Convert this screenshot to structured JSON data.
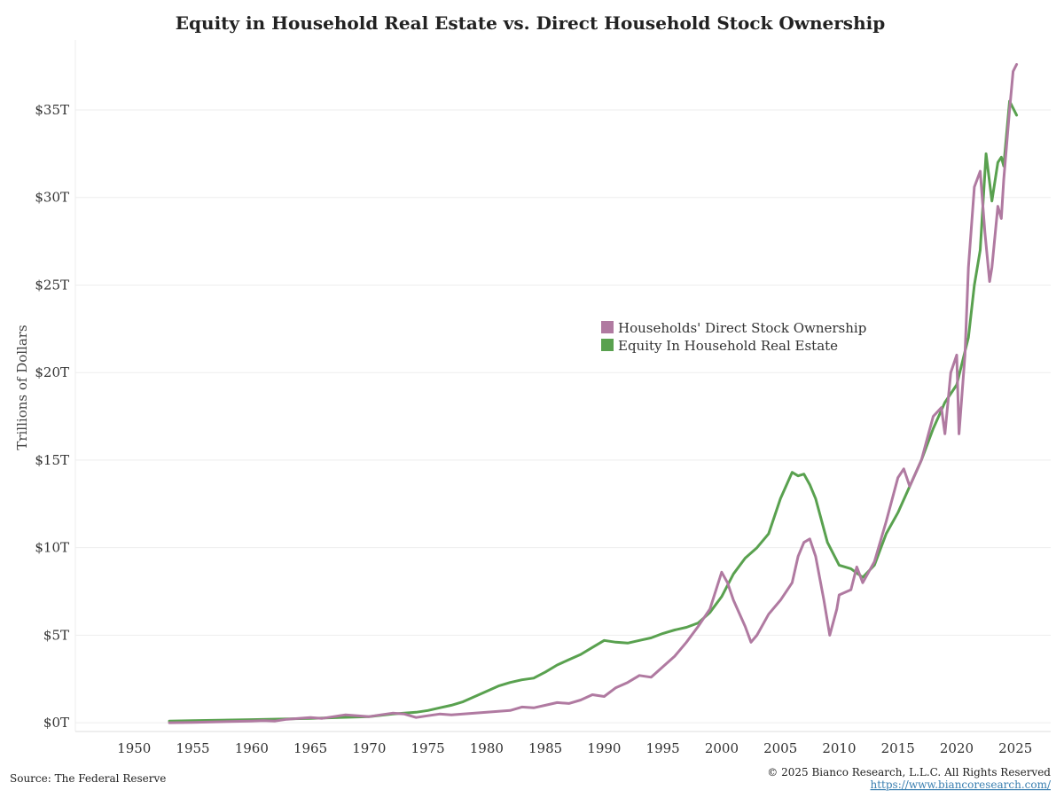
{
  "chart_data": {
    "type": "line",
    "title": "Equity in Household Real Estate vs. Direct Household Stock Ownership",
    "xlabel": "",
    "ylabel": "Trillions of Dollars",
    "xlim": [
      1945,
      2028
    ],
    "ylim": [
      -0.5,
      39
    ],
    "x_ticks": [
      1950,
      1955,
      1960,
      1965,
      1970,
      1975,
      1980,
      1985,
      1990,
      1995,
      2000,
      2005,
      2010,
      2015,
      2020,
      2025
    ],
    "y_ticks": [
      {
        "value": 0,
        "label": "$0T"
      },
      {
        "value": 5,
        "label": "$5T"
      },
      {
        "value": 10,
        "label": "$10T"
      },
      {
        "value": 15,
        "label": "$15T"
      },
      {
        "value": 20,
        "label": "$20T"
      },
      {
        "value": 25,
        "label": "$25T"
      },
      {
        "value": 30,
        "label": "$30T"
      },
      {
        "value": 35,
        "label": "$35T"
      }
    ],
    "legend_position": "center-right",
    "series": [
      {
        "name": "Households' Direct Stock Ownership",
        "color": "#b07aa1",
        "points": [
          [
            1953.0,
            0.0
          ],
          [
            1955,
            0.02
          ],
          [
            1957,
            0.05
          ],
          [
            1959,
            0.08
          ],
          [
            1960,
            0.1
          ],
          [
            1961,
            0.12
          ],
          [
            1962,
            0.1
          ],
          [
            1963,
            0.2
          ],
          [
            1964,
            0.25
          ],
          [
            1965,
            0.3
          ],
          [
            1966,
            0.25
          ],
          [
            1967,
            0.35
          ],
          [
            1968,
            0.45
          ],
          [
            1969,
            0.4
          ],
          [
            1970,
            0.35
          ],
          [
            1971,
            0.45
          ],
          [
            1972,
            0.55
          ],
          [
            1973,
            0.5
          ],
          [
            1974,
            0.3
          ],
          [
            1975,
            0.4
          ],
          [
            1976,
            0.5
          ],
          [
            1977,
            0.45
          ],
          [
            1978,
            0.5
          ],
          [
            1979,
            0.55
          ],
          [
            1980,
            0.6
          ],
          [
            1981,
            0.65
          ],
          [
            1982,
            0.7
          ],
          [
            1983,
            0.9
          ],
          [
            1984,
            0.85
          ],
          [
            1985,
            1.0
          ],
          [
            1986,
            1.15
          ],
          [
            1987,
            1.1
          ],
          [
            1988,
            1.3
          ],
          [
            1989,
            1.6
          ],
          [
            1990,
            1.5
          ],
          [
            1991,
            2.0
          ],
          [
            1992,
            2.3
          ],
          [
            1993,
            2.7
          ],
          [
            1994,
            2.6
          ],
          [
            1995,
            3.2
          ],
          [
            1996,
            3.8
          ],
          [
            1997,
            4.6
          ],
          [
            1998,
            5.5
          ],
          [
            1999,
            6.5
          ],
          [
            2000,
            8.6
          ],
          [
            2000.5,
            8.0
          ],
          [
            2001,
            7.0
          ],
          [
            2002,
            5.5
          ],
          [
            2002.5,
            4.6
          ],
          [
            2003,
            5.0
          ],
          [
            2004,
            6.2
          ],
          [
            2005,
            7.0
          ],
          [
            2006,
            8.0
          ],
          [
            2006.5,
            9.5
          ],
          [
            2007,
            10.3
          ],
          [
            2007.5,
            10.5
          ],
          [
            2008,
            9.5
          ],
          [
            2008.7,
            7.0
          ],
          [
            2009.2,
            5.0
          ],
          [
            2009.8,
            6.5
          ],
          [
            2010,
            7.3
          ],
          [
            2011,
            7.6
          ],
          [
            2011.5,
            8.9
          ],
          [
            2012,
            8.0
          ],
          [
            2013,
            9.2
          ],
          [
            2014,
            11.5
          ],
          [
            2015,
            14.0
          ],
          [
            2015.5,
            14.5
          ],
          [
            2016,
            13.5
          ],
          [
            2017,
            15.0
          ],
          [
            2018,
            17.5
          ],
          [
            2018.7,
            18.0
          ],
          [
            2019,
            16.5
          ],
          [
            2019.5,
            20.0
          ],
          [
            2020,
            21.0
          ],
          [
            2020.2,
            16.5
          ],
          [
            2020.7,
            21.0
          ],
          [
            2021,
            26.0
          ],
          [
            2021.5,
            30.6
          ],
          [
            2022,
            31.5
          ],
          [
            2022.4,
            28.0
          ],
          [
            2022.8,
            25.2
          ],
          [
            2023,
            26.0
          ],
          [
            2023.5,
            29.5
          ],
          [
            2023.8,
            28.8
          ],
          [
            2024,
            31.0
          ],
          [
            2024.5,
            35.0
          ],
          [
            2024.8,
            37.2
          ],
          [
            2025.1,
            37.6
          ]
        ]
      },
      {
        "name": "Equity In Household Real Estate",
        "color": "#59a14f",
        "points": [
          [
            1953.0,
            0.1
          ],
          [
            1955,
            0.12
          ],
          [
            1960,
            0.18
          ],
          [
            1965,
            0.25
          ],
          [
            1970,
            0.35
          ],
          [
            1972,
            0.5
          ],
          [
            1974,
            0.6
          ],
          [
            1975,
            0.7
          ],
          [
            1976,
            0.85
          ],
          [
            1977,
            1.0
          ],
          [
            1978,
            1.2
          ],
          [
            1979,
            1.5
          ],
          [
            1980,
            1.8
          ],
          [
            1981,
            2.1
          ],
          [
            1982,
            2.3
          ],
          [
            1983,
            2.45
          ],
          [
            1984,
            2.55
          ],
          [
            1985,
            2.9
          ],
          [
            1986,
            3.3
          ],
          [
            1987,
            3.6
          ],
          [
            1988,
            3.9
          ],
          [
            1989,
            4.3
          ],
          [
            1990,
            4.7
          ],
          [
            1991,
            4.6
          ],
          [
            1992,
            4.55
          ],
          [
            1993,
            4.7
          ],
          [
            1994,
            4.85
          ],
          [
            1995,
            5.1
          ],
          [
            1996,
            5.3
          ],
          [
            1997,
            5.45
          ],
          [
            1998,
            5.7
          ],
          [
            1999,
            6.3
          ],
          [
            2000,
            7.2
          ],
          [
            2001,
            8.5
          ],
          [
            2002,
            9.4
          ],
          [
            2003,
            10.0
          ],
          [
            2004,
            10.8
          ],
          [
            2005,
            12.8
          ],
          [
            2006,
            14.3
          ],
          [
            2006.5,
            14.1
          ],
          [
            2007,
            14.2
          ],
          [
            2007.5,
            13.6
          ],
          [
            2008,
            12.8
          ],
          [
            2009,
            10.3
          ],
          [
            2010,
            9.0
          ],
          [
            2011,
            8.8
          ],
          [
            2012,
            8.3
          ],
          [
            2013,
            9.0
          ],
          [
            2014,
            10.8
          ],
          [
            2015,
            12.0
          ],
          [
            2016,
            13.5
          ],
          [
            2017,
            15.0
          ],
          [
            2018,
            16.8
          ],
          [
            2019,
            18.3
          ],
          [
            2020,
            19.3
          ],
          [
            2021,
            22.0
          ],
          [
            2021.5,
            25.0
          ],
          [
            2022,
            27.0
          ],
          [
            2022.5,
            32.5
          ],
          [
            2023,
            29.8
          ],
          [
            2023.5,
            32.0
          ],
          [
            2023.8,
            32.3
          ],
          [
            2024,
            31.8
          ],
          [
            2024.5,
            35.5
          ],
          [
            2025.1,
            34.7
          ]
        ]
      }
    ]
  },
  "footer": {
    "source": "Source: The Federal Reserve",
    "copyright": "© 2025 Bianco Research, L.L.C. All Rights Reserved",
    "url": "https://www.biancoresearch.com/"
  }
}
